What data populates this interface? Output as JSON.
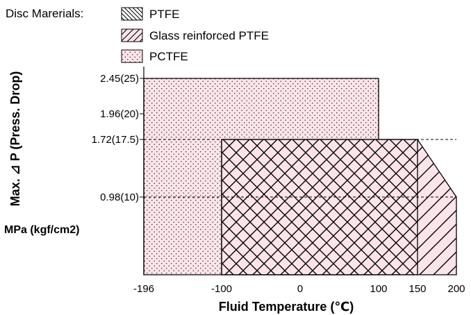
{
  "chart_data": {
    "type": "area",
    "legend": {
      "title": "Disc Marerials:",
      "entries": [
        {
          "name": "PTFE",
          "pattern": "backslash-hatch"
        },
        {
          "name": "Glass reinforced PTFE",
          "pattern": "slash-hatch"
        },
        {
          "name": "PCTFE",
          "pattern": "dots"
        }
      ]
    },
    "xlabel": "Fluid Temperature (℃)",
    "ylabel": "Max. ⊿ P (Press. Drop)",
    "yunit": "MPa (kgf/cm2)",
    "x_ticks": [
      {
        "value": -196,
        "label": "-196"
      },
      {
        "value": -100,
        "label": "-100"
      },
      {
        "value": 0,
        "label": "0"
      },
      {
        "value": 100,
        "label": "100"
      },
      {
        "value": 150,
        "label": "150"
      },
      {
        "value": 200,
        "label": "200"
      }
    ],
    "y_ticks": [
      {
        "value": 2.45,
        "label": "2.45(25)"
      },
      {
        "value": 1.96,
        "label": "1.96(20)"
      },
      {
        "value": 1.72,
        "label": "1.72(17.5)"
      },
      {
        "value": 0.98,
        "label": "0.98(10)"
      }
    ],
    "regions": [
      {
        "name": "PCTFE",
        "polygon": [
          [
            -196,
            0
          ],
          [
            -196,
            2.45
          ],
          [
            100,
            2.45
          ],
          [
            100,
            0
          ]
        ]
      },
      {
        "name": "PTFE",
        "polygon": [
          [
            -100,
            0
          ],
          [
            -100,
            1.72
          ],
          [
            150,
            1.72
          ],
          [
            150,
            0
          ]
        ]
      },
      {
        "name": "Glass reinforced PTFE",
        "polygon": [
          [
            -100,
            0
          ],
          [
            -100,
            1.72
          ],
          [
            150,
            1.72
          ],
          [
            200,
            0.98
          ],
          [
            200,
            0
          ]
        ]
      }
    ],
    "dashed_levels": [
      1.72,
      0.98
    ],
    "colors": {
      "fill": "#fbe4ea",
      "stroke": "#000000"
    }
  }
}
